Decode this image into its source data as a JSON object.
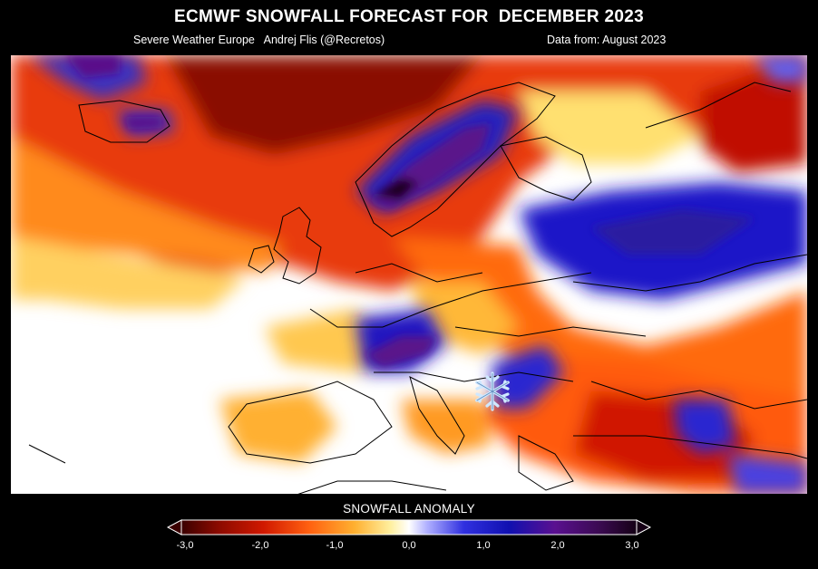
{
  "header": {
    "title": "ECMWF SNOWFALL FORECAST FOR  DECEMBER 2023",
    "credit": "Severe Weather Europe   Andrej Flis (@Recretos)",
    "data_source": "Data from: August 2023"
  },
  "map": {
    "variable": "snowfall anomaly",
    "region": "Europe",
    "colors": {
      "neutral": "#ffffff",
      "negative_light": "#ffd060",
      "negative_mid": "#ff7a10",
      "negative_strong": "#e02008",
      "negative_extreme": "#5a0000",
      "positive_light": "#6a6aff",
      "positive_mid": "#1010c8",
      "positive_strong": "#5a108a",
      "positive_extreme": "#1a001a",
      "coastline": "#000000"
    },
    "marker_icon": "snowflake-icon"
  },
  "legend": {
    "title": "SNOWFALL ANOMALY",
    "ticks": [
      "-3,0",
      "-2,0",
      "-1,0",
      "0,0",
      "1,0",
      "2,0",
      "3,0"
    ],
    "min": -3.0,
    "max": 3.0
  }
}
